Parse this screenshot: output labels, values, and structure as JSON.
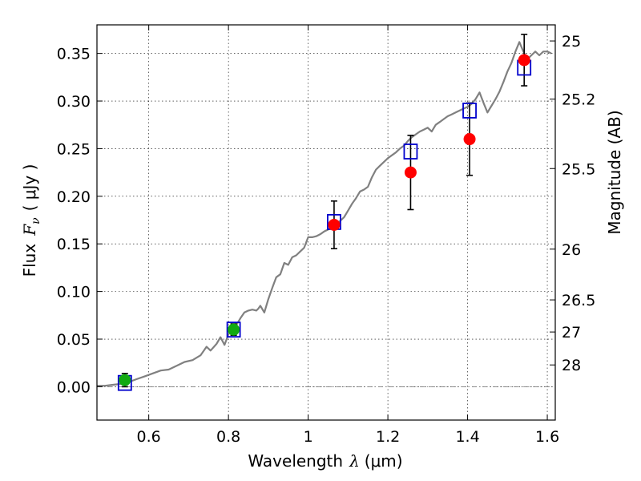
{
  "chart_data": {
    "type": "scatter",
    "xlabel_text": "Wavelength",
    "xlabel_symbol": "λ",
    "xlabel_unit": "(μm)",
    "ylabel_text": "Flux",
    "ylabel_symbol": "F",
    "ylabel_subscript": "ν",
    "ylabel_unit": "( μJy )",
    "y2label": "Magnitude (AB)",
    "xlim": [
      0.47,
      1.62
    ],
    "ylim": [
      -0.035,
      0.38
    ],
    "grid": true,
    "x_ticks": [
      0.6,
      0.8,
      1.0,
      1.2,
      1.4,
      1.6
    ],
    "x_tick_labels": [
      "0.6",
      "0.8",
      "1",
      "1.2",
      "1.4",
      "1.6"
    ],
    "y_ticks": [
      0.0,
      0.05,
      0.1,
      0.15,
      0.2,
      0.25,
      0.3,
      0.35
    ],
    "y_tick_labels": [
      "0.00",
      "0.05",
      "0.10",
      "0.15",
      "0.20",
      "0.25",
      "0.30",
      "0.35"
    ],
    "mag_ticks": [
      {
        "label": "25",
        "flux": 0.3631
      },
      {
        "label": "25.2",
        "flux": 0.302
      },
      {
        "label": "25.5",
        "flux": 0.2291
      },
      {
        "label": "26",
        "flux": 0.1445
      },
      {
        "label": "26.5",
        "flux": 0.0912
      },
      {
        "label": "27",
        "flux": 0.0575
      },
      {
        "label": "28",
        "flux": 0.0229
      }
    ],
    "colors": {
      "model_line": "#808080",
      "model_boxes": "#0000cc",
      "green_points": "#11aa11",
      "red_points": "#ff0000",
      "error_bars": "#000000",
      "zero_line": "#808080"
    },
    "series": [
      {
        "kind": "line",
        "points": [
          [
            0.47,
            0.001
          ],
          [
            0.49,
            0.001
          ],
          [
            0.51,
            0.002
          ],
          [
            0.53,
            0.003
          ],
          [
            0.55,
            0.005
          ],
          [
            0.57,
            0.008
          ],
          [
            0.59,
            0.011
          ],
          [
            0.61,
            0.014
          ],
          [
            0.63,
            0.017
          ],
          [
            0.65,
            0.018
          ],
          [
            0.67,
            0.022
          ],
          [
            0.69,
            0.026
          ],
          [
            0.71,
            0.028
          ],
          [
            0.73,
            0.033
          ],
          [
            0.745,
            0.042
          ],
          [
            0.755,
            0.038
          ],
          [
            0.77,
            0.045
          ],
          [
            0.78,
            0.052
          ],
          [
            0.79,
            0.044
          ],
          [
            0.8,
            0.055
          ],
          [
            0.81,
            0.062
          ],
          [
            0.82,
            0.065
          ],
          [
            0.83,
            0.072
          ],
          [
            0.84,
            0.078
          ],
          [
            0.85,
            0.08
          ],
          [
            0.86,
            0.081
          ],
          [
            0.87,
            0.08
          ],
          [
            0.875,
            0.082
          ],
          [
            0.88,
            0.085
          ],
          [
            0.89,
            0.078
          ],
          [
            0.9,
            0.092
          ],
          [
            0.91,
            0.104
          ],
          [
            0.92,
            0.115
          ],
          [
            0.93,
            0.118
          ],
          [
            0.94,
            0.13
          ],
          [
            0.95,
            0.128
          ],
          [
            0.96,
            0.136
          ],
          [
            0.97,
            0.138
          ],
          [
            0.98,
            0.142
          ],
          [
            0.99,
            0.146
          ],
          [
            1.0,
            0.157
          ],
          [
            1.01,
            0.157
          ],
          [
            1.02,
            0.158
          ],
          [
            1.03,
            0.16
          ],
          [
            1.04,
            0.163
          ],
          [
            1.05,
            0.165
          ],
          [
            1.06,
            0.168
          ],
          [
            1.07,
            0.171
          ],
          [
            1.08,
            0.174
          ],
          [
            1.09,
            0.178
          ],
          [
            1.1,
            0.185
          ],
          [
            1.11,
            0.192
          ],
          [
            1.12,
            0.198
          ],
          [
            1.13,
            0.205
          ],
          [
            1.14,
            0.207
          ],
          [
            1.15,
            0.21
          ],
          [
            1.16,
            0.22
          ],
          [
            1.17,
            0.228
          ],
          [
            1.18,
            0.232
          ],
          [
            1.19,
            0.236
          ],
          [
            1.2,
            0.24
          ],
          [
            1.21,
            0.243
          ],
          [
            1.22,
            0.246
          ],
          [
            1.23,
            0.25
          ],
          [
            1.24,
            0.253
          ],
          [
            1.25,
            0.258
          ],
          [
            1.26,
            0.262
          ],
          [
            1.27,
            0.265
          ],
          [
            1.28,
            0.268
          ],
          [
            1.29,
            0.27
          ],
          [
            1.3,
            0.272
          ],
          [
            1.31,
            0.268
          ],
          [
            1.32,
            0.275
          ],
          [
            1.33,
            0.278
          ],
          [
            1.34,
            0.281
          ],
          [
            1.35,
            0.284
          ],
          [
            1.36,
            0.286
          ],
          [
            1.37,
            0.288
          ],
          [
            1.38,
            0.29
          ],
          [
            1.39,
            0.292
          ],
          [
            1.4,
            0.294
          ],
          [
            1.41,
            0.297
          ],
          [
            1.42,
            0.302
          ],
          [
            1.43,
            0.309
          ],
          [
            1.44,
            0.298
          ],
          [
            1.45,
            0.288
          ],
          [
            1.46,
            0.295
          ],
          [
            1.47,
            0.302
          ],
          [
            1.48,
            0.31
          ],
          [
            1.49,
            0.32
          ],
          [
            1.5,
            0.331
          ],
          [
            1.51,
            0.34
          ],
          [
            1.52,
            0.352
          ],
          [
            1.53,
            0.362
          ],
          [
            1.54,
            0.352
          ],
          [
            1.55,
            0.344
          ],
          [
            1.56,
            0.348
          ],
          [
            1.57,
            0.352
          ],
          [
            1.58,
            0.348
          ],
          [
            1.59,
            0.352
          ],
          [
            1.6,
            0.352
          ],
          [
            1.61,
            0.35
          ]
        ]
      },
      {
        "kind": "model_boxes",
        "points": [
          [
            0.54,
            0.004
          ],
          [
            0.813,
            0.06
          ],
          [
            1.065,
            0.173
          ],
          [
            1.257,
            0.247
          ],
          [
            1.405,
            0.29
          ],
          [
            1.542,
            0.335
          ]
        ]
      },
      {
        "kind": "green_points",
        "points": [
          [
            0.54,
            0.007
          ],
          [
            0.813,
            0.06
          ]
        ],
        "yerr": [
          0.007,
          0.006
        ]
      },
      {
        "kind": "red_points",
        "points": [
          [
            1.065,
            0.17
          ],
          [
            1.257,
            0.225
          ],
          [
            1.405,
            0.26
          ],
          [
            1.542,
            0.343
          ]
        ],
        "yerr": [
          0.025,
          0.039,
          0.038,
          0.027
        ]
      }
    ]
  }
}
